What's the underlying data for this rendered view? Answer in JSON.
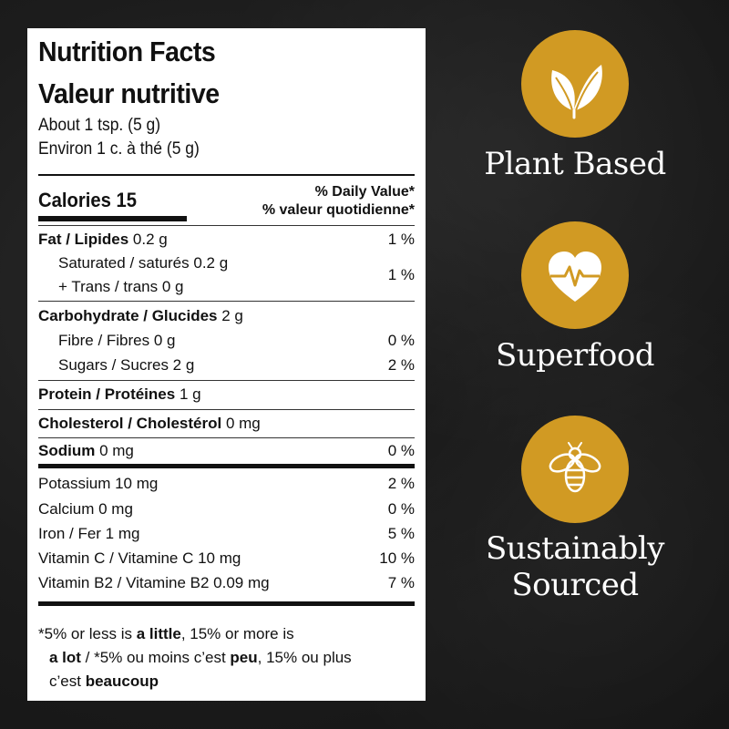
{
  "nutrition": {
    "title_en": "Nutrition Facts",
    "title_fr": "Valeur nutritive",
    "serving_en": "About 1 tsp. (5 g)",
    "serving_fr": "Environ 1 c. à thé (5 g)",
    "calories_label": "Calories 15",
    "dv_header_en": "% Daily Value*",
    "dv_header_fr": "% valeur quotidienne*",
    "fat": {
      "label": "Fat / Lipides",
      "amount": "0.2 g",
      "pct": "1 %"
    },
    "saturated": {
      "label": "Saturated / saturés 0.2 g",
      "label2": "+ Trans / trans 0 g",
      "pct": "1 %"
    },
    "carb": {
      "label": "Carbohydrate / Glucides",
      "amount": "2 g"
    },
    "fibre": {
      "label": "Fibre / Fibres 0 g",
      "pct": "0 %"
    },
    "sugars": {
      "label": "Sugars / Sucres 2 g",
      "pct": "2 %"
    },
    "protein": {
      "label": "Protein / Protéines",
      "amount": "1 g"
    },
    "cholesterol": {
      "label": "Cholesterol / Cholestérol",
      "amount": "0 mg"
    },
    "sodium": {
      "label": "Sodium",
      "amount": "0 mg",
      "pct": "0 %"
    },
    "potassium": {
      "label": "Potassium 10 mg",
      "pct": "2 %"
    },
    "calcium": {
      "label": "Calcium 0 mg",
      "pct": "0 %"
    },
    "iron": {
      "label": "Iron / Fer 1 mg",
      "pct": "5 %"
    },
    "vitc": {
      "label": "Vitamin C / Vitamine C 10 mg",
      "pct": "10 %"
    },
    "vitb2": {
      "label": "Vitamin B2 / Vitamine B2 0.09 mg",
      "pct": "7 %"
    },
    "footnote": {
      "l1a": "*5% or less is ",
      "l1b": "a little",
      "l1c": ", 15% or more is",
      "l2a": "a lot",
      "l2b": " / *5% ou moins c’est ",
      "l2c": "peu",
      "l2d": ", 15% ou plus",
      "l3a": "c’est ",
      "l3b": "beaucoup"
    }
  },
  "badges": [
    {
      "label": "Plant Based",
      "icon": "leaf-icon"
    },
    {
      "label": "Superfood",
      "icon": "heart-pulse-icon"
    },
    {
      "label": "Sustainably",
      "label2": "Sourced",
      "icon": "bee-icon"
    }
  ],
  "colors": {
    "accent": "#d19a23",
    "background": "#1c1c1c",
    "panel": "#ffffff"
  }
}
